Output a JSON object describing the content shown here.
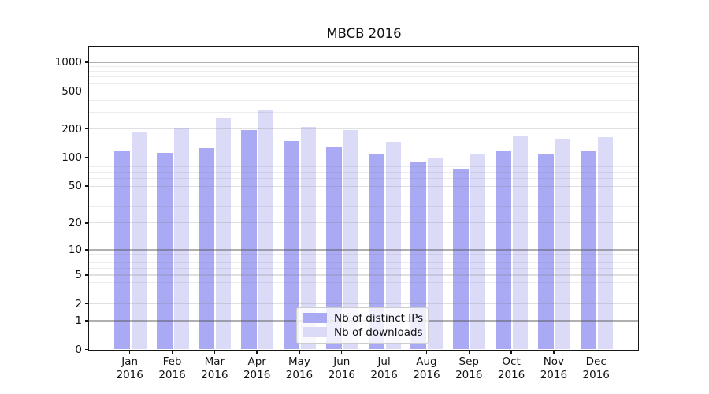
{
  "chart_data": {
    "type": "bar",
    "title": "MBCB 2016",
    "categories": [
      "Jan 2016",
      "Feb 2016",
      "Mar 2016",
      "Apr 2016",
      "May 2016",
      "Jun 2016",
      "Jul 2016",
      "Aug 2016",
      "Sep 2016",
      "Oct 2016",
      "Nov 2016",
      "Dec 2016"
    ],
    "series": [
      {
        "name": "Nb of distinct IPs",
        "color": "#a9a9f4",
        "values": [
          116,
          112,
          127,
          196,
          150,
          131,
          111,
          89,
          76,
          116,
          107,
          118
        ]
      },
      {
        "name": "Nb of downloads",
        "color": "#dbdbf8",
        "values": [
          187,
          204,
          260,
          312,
          210,
          195,
          147,
          100,
          110,
          167,
          155,
          163
        ]
      }
    ],
    "xlabel": "",
    "ylabel": "",
    "yscale": "log1p",
    "yticks": [
      0,
      1,
      2,
      5,
      10,
      20,
      50,
      100,
      200,
      500,
      1000
    ],
    "ylim": [
      0,
      1450
    ],
    "grid": "on",
    "legend_position": "lower center"
  }
}
